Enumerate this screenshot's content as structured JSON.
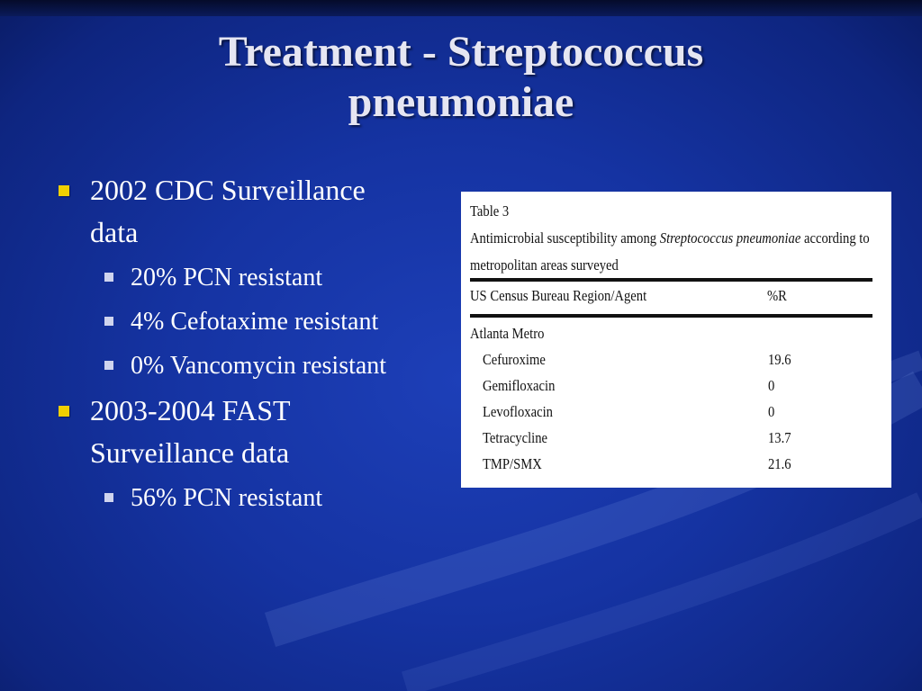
{
  "slide": {
    "title_line1": "Treatment - Streptococcus",
    "title_line2": "pneumoniae",
    "bullets": [
      {
        "text_a": "2002 CDC Surveillance",
        "text_b": "data",
        "sub": [
          "20% PCN resistant",
          "4% Cefotaxime resistant",
          "0% Vancomycin resistant"
        ]
      },
      {
        "text_a": "2003-2004 FAST",
        "text_b": "Surveillance data",
        "sub": [
          "56% PCN resistant"
        ]
      }
    ]
  },
  "table": {
    "caption_line1": "Table 3",
    "caption_line2_pre": "Antimicrobial susceptibility among ",
    "caption_line2_italic": "Streptococcus pneumoniae",
    "caption_line2_post": " according to",
    "caption_line3": "metropolitan areas surveyed",
    "col_agent": "US Census Bureau Region/Agent",
    "col_r": "%R",
    "group": "Atlanta Metro",
    "rows": [
      {
        "agent": "Cefuroxime",
        "value": "19.6"
      },
      {
        "agent": "Gemifloxacin",
        "value": "0"
      },
      {
        "agent": "Levofloxacin",
        "value": "0"
      },
      {
        "agent": "Tetracycline",
        "value": "13.7"
      },
      {
        "agent": "TMP/SMX",
        "value": "21.6"
      }
    ]
  },
  "colors": {
    "background": "#1533a2",
    "bullet_level1": "#f0d000",
    "bullet_level2": "#cfd4ee",
    "title": "#e6e6f2"
  }
}
